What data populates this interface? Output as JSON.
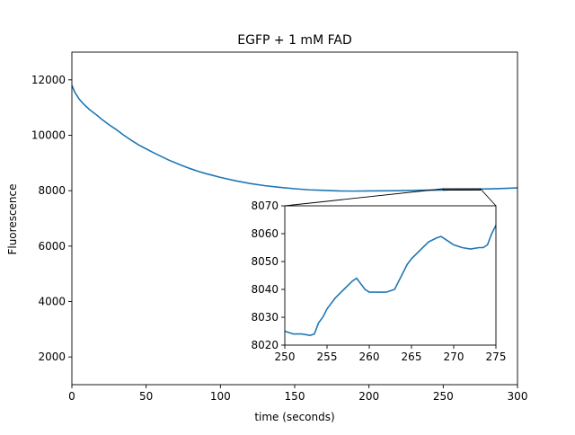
{
  "chart_data": [
    {
      "type": "line",
      "title": "EGFP + 1 mM FAD",
      "xlabel": "time (seconds)",
      "ylabel": "Fluorescence",
      "xlim": [
        0,
        300
      ],
      "ylim": [
        1000,
        13000
      ],
      "xticks": [
        0,
        50,
        100,
        150,
        200,
        250,
        300
      ],
      "yticks": [
        2000,
        4000,
        6000,
        8000,
        10000,
        12000
      ],
      "grid": false,
      "color": "#1f77b4",
      "series": [
        {
          "x": [
            0,
            2,
            5,
            8,
            12,
            16,
            20,
            25,
            30,
            35,
            40,
            45,
            50,
            55,
            60,
            65,
            70,
            75,
            80,
            85,
            90,
            95,
            100,
            110,
            120,
            130,
            140,
            150,
            160,
            170,
            180,
            190,
            200,
            210,
            220,
            230,
            240,
            250,
            260,
            270,
            280,
            290,
            300
          ],
          "y": [
            11800,
            11550,
            11300,
            11120,
            10920,
            10760,
            10580,
            10380,
            10200,
            10000,
            9820,
            9650,
            9510,
            9370,
            9240,
            9110,
            9000,
            8890,
            8790,
            8700,
            8620,
            8550,
            8480,
            8360,
            8260,
            8180,
            8120,
            8070,
            8030,
            8010,
            7990,
            7985,
            7990,
            7995,
            8000,
            8010,
            8020,
            8025,
            8040,
            8055,
            8065,
            8080,
            8100
          ]
        }
      ]
    },
    {
      "type": "line",
      "title": "",
      "xlabel": "",
      "ylabel": "",
      "xlim": [
        250,
        275
      ],
      "ylim": [
        8020,
        8070
      ],
      "xticks": [
        250,
        255,
        260,
        265,
        270,
        275
      ],
      "yticks": [
        8020,
        8030,
        8040,
        8050,
        8060,
        8070
      ],
      "grid": false,
      "color": "#1f77b4",
      "series": [
        {
          "x": [
            250,
            251,
            252,
            253,
            253.5,
            254,
            254.5,
            255,
            256,
            257,
            258,
            258.5,
            259,
            259.5,
            260,
            261,
            262,
            263,
            263.5,
            264,
            264.5,
            265,
            266,
            267,
            268,
            268.5,
            269,
            269.5,
            270,
            271,
            272,
            273,
            273.5,
            274,
            274.5,
            275
          ],
          "y": [
            8025,
            8024,
            8024,
            8023.5,
            8024,
            8028,
            8030,
            8033,
            8037,
            8040,
            8043,
            8044,
            8042,
            8040,
            8039,
            8039,
            8039,
            8040,
            8043,
            8046,
            8049,
            8051,
            8054,
            8057,
            8058.5,
            8059,
            8058,
            8057,
            8056,
            8055,
            8054.5,
            8055,
            8055,
            8056,
            8060,
            8063
          ]
        }
      ]
    }
  ]
}
